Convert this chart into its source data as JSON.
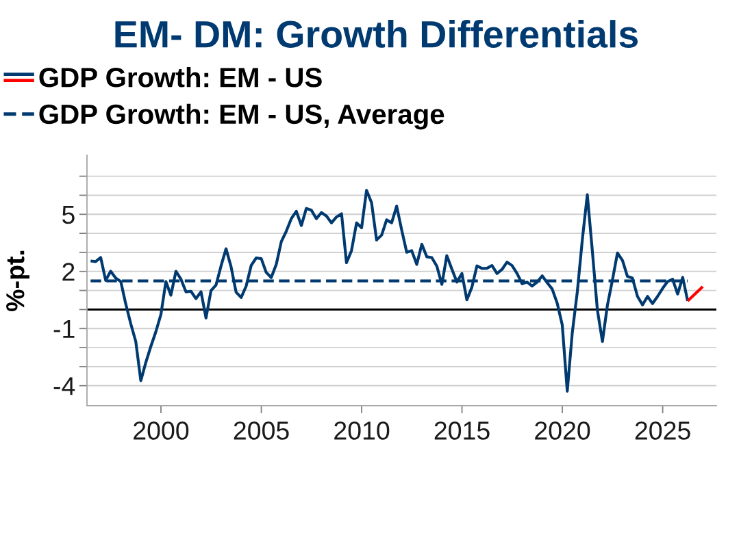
{
  "chart_data": {
    "type": "line",
    "title": "EM- DM: Growth Differentials",
    "ylabel": "%-pt.",
    "xlim": [
      "1996-04-25",
      "2027-09-05"
    ],
    "xticks": [
      "2000",
      "2005",
      "2010",
      "2015",
      "2020",
      "2025"
    ],
    "ylim": [
      -5.05,
      8.1
    ],
    "yticks": [
      {
        "value": 7,
        "label": null
      },
      {
        "value": 6,
        "label": null
      },
      5,
      {
        "value": 4,
        "label": null
      },
      {
        "value": 3,
        "label": null
      },
      2,
      {
        "value": 1,
        "label": null
      },
      {
        "value": 0,
        "label": null
      },
      -1,
      {
        "value": -2,
        "label": null
      },
      {
        "value": -3,
        "label": null
      },
      -4
    ],
    "grid": "y",
    "legend": "top left",
    "line_style": "solid",
    "ref_lines": [
      {
        "axis": "y",
        "value": 0,
        "color": "#000000"
      }
    ],
    "series": [
      {
        "name": "GDP Growth: EM - US",
        "color": "#003a70",
        "x": [
          "1996-06-30",
          "1996-09-30",
          "1996-12-31",
          "1997-03-31",
          "1997-06-30",
          "1997-09-30",
          "1997-12-31",
          "1998-03-31",
          "1998-06-30",
          "1998-09-30",
          "1998-12-31",
          "1999-03-31",
          "1999-06-30",
          "1999-09-30",
          "1999-12-31",
          "2000-03-31",
          "2000-06-30",
          "2000-09-30",
          "2000-12-31",
          "2001-03-31",
          "2001-06-30",
          "2001-09-30",
          "2001-12-31",
          "2002-03-31",
          "2002-06-30",
          "2002-09-30",
          "2002-12-31",
          "2003-03-31",
          "2003-06-30",
          "2003-09-30",
          "2003-12-31",
          "2004-03-31",
          "2004-06-30",
          "2004-09-30",
          "2004-12-31",
          "2005-03-31",
          "2005-06-30",
          "2005-09-30",
          "2005-12-31",
          "2006-03-31",
          "2006-06-30",
          "2006-09-30",
          "2006-12-31",
          "2007-03-31",
          "2007-06-30",
          "2007-09-30",
          "2007-12-31",
          "2008-03-31",
          "2008-06-30",
          "2008-09-30",
          "2008-12-31",
          "2009-03-31",
          "2009-06-30",
          "2009-09-30",
          "2009-12-31",
          "2010-03-31",
          "2010-06-30",
          "2010-09-30",
          "2010-12-31",
          "2011-03-31",
          "2011-06-30",
          "2011-09-30",
          "2011-12-31",
          "2012-03-31",
          "2012-06-30",
          "2012-09-30",
          "2012-12-31",
          "2013-03-31",
          "2013-06-30",
          "2013-09-30",
          "2013-12-31",
          "2014-03-31",
          "2014-06-30",
          "2014-09-30",
          "2014-12-31",
          "2015-03-31",
          "2015-06-30",
          "2015-09-30",
          "2015-12-31",
          "2016-03-31",
          "2016-06-30",
          "2016-09-30",
          "2016-12-31",
          "2017-03-31",
          "2017-06-30",
          "2017-09-30",
          "2017-12-31",
          "2018-03-31",
          "2018-06-30",
          "2018-09-30",
          "2018-12-31",
          "2019-03-31",
          "2019-06-30",
          "2019-09-30",
          "2019-12-31",
          "2020-03-31",
          "2020-06-30",
          "2020-09-30",
          "2020-12-31",
          "2021-03-31",
          "2021-06-30",
          "2021-09-30",
          "2021-12-31",
          "2022-03-31",
          "2022-06-30",
          "2022-09-30",
          "2022-12-31",
          "2023-03-31",
          "2023-06-30",
          "2023-09-30",
          "2023-12-31",
          "2024-03-31",
          "2024-06-30",
          "2024-09-30",
          "2024-12-31",
          "2025-03-31",
          "2025-06-30",
          "2025-09-30",
          "2025-12-31",
          "2026-03-31"
        ],
        "values": [
          2.55,
          2.52,
          2.73,
          1.53,
          2.01,
          1.65,
          1.47,
          0.3,
          -0.74,
          -1.68,
          -3.74,
          -2.79,
          -1.95,
          -1.17,
          -0.27,
          1.47,
          0.75,
          2.01,
          1.59,
          0.93,
          0.96,
          0.57,
          0.93,
          -0.45,
          0.99,
          1.29,
          2.3,
          3.19,
          2.25,
          0.91,
          0.63,
          1.23,
          2.31,
          2.71,
          2.67,
          1.95,
          1.68,
          2.37,
          3.57,
          4.11,
          4.77,
          5.16,
          4.41,
          5.31,
          5.22,
          4.77,
          5.09,
          4.91,
          4.55,
          4.86,
          5.03,
          2.46,
          3.09,
          4.55,
          4.29,
          6.26,
          5.61,
          3.65,
          3.91,
          4.71,
          4.55,
          5.43,
          4.17,
          3.01,
          3.09,
          2.37,
          3.43,
          2.77,
          2.73,
          2.28,
          1.32,
          2.83,
          2.13,
          1.44,
          1.89,
          0.51,
          1.17,
          2.29,
          2.16,
          2.17,
          2.31,
          1.89,
          2.11,
          2.49,
          2.31,
          1.89,
          1.35,
          1.44,
          1.23,
          1.44,
          1.77,
          1.41,
          1.08,
          0.33,
          -0.81,
          -4.29,
          -1.23,
          0.93,
          3.69,
          6.03,
          3.09,
          -0.02,
          -1.68,
          0.21,
          1.53,
          2.97,
          2.58,
          1.74,
          1.65,
          0.69,
          0.24,
          0.69,
          0.31,
          0.69,
          1.11,
          1.47,
          1.59,
          0.81,
          1.69,
          0.45
        ]
      },
      {
        "color": "#ff0000",
        "x": [
          "2026-03-31",
          "2026-12-31"
        ],
        "values": [
          0.45,
          1.2
        ]
      },
      {
        "name": "GDP Growth: EM - US, Average",
        "color": "#003a70",
        "line_style": "dashed",
        "x": [
          "1996-06-30",
          "2026-03-31"
        ],
        "values": [
          1.5,
          1.5
        ]
      }
    ]
  }
}
